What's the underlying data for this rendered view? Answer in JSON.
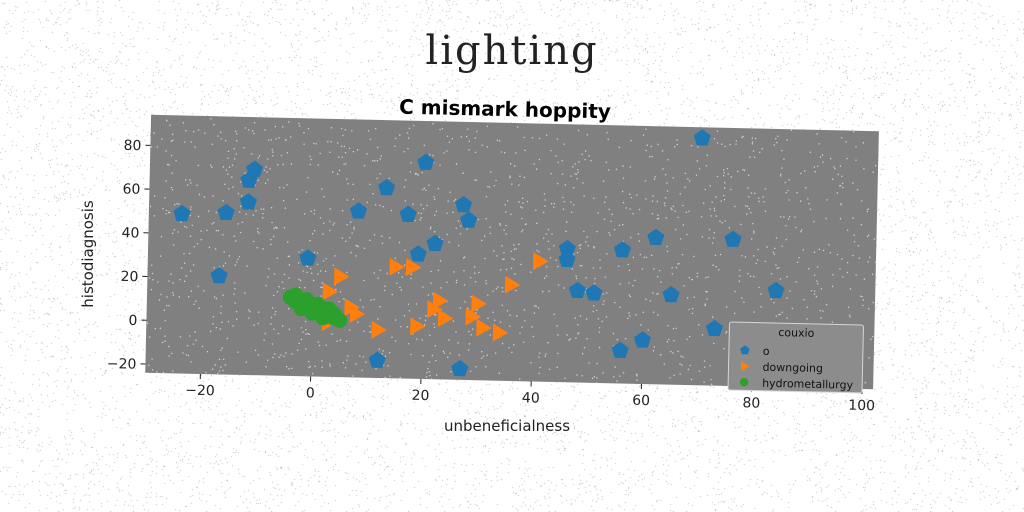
{
  "figure": {
    "suptitle": "lighting",
    "background": "#ffffff",
    "plot_background": "#808080"
  },
  "chart_data": {
    "type": "scatter",
    "title": "C mismark hoppity",
    "xlabel": "unbeneficialness",
    "ylabel": "histodiagnosis",
    "xlim": [
      -30,
      102
    ],
    "ylim": [
      -24,
      94
    ],
    "xticks": [
      -20,
      0,
      20,
      40,
      60,
      80,
      100
    ],
    "yticks": [
      -20,
      0,
      20,
      40,
      60,
      80
    ],
    "grid": false,
    "legend": {
      "title": "couxio",
      "placement": "lower-right"
    },
    "series": [
      {
        "name": "o",
        "marker": "pentagon",
        "color": "#1f77b4",
        "points": [
          [
            -24,
            49
          ],
          [
            -17,
            21
          ],
          [
            -16,
            50
          ],
          [
            -12,
            65
          ],
          [
            -11,
            70
          ],
          [
            -12,
            55
          ],
          [
            -1,
            30
          ],
          [
            8,
            52
          ],
          [
            13,
            63
          ],
          [
            17,
            51
          ],
          [
            20,
            75
          ],
          [
            19,
            33
          ],
          [
            22,
            38
          ],
          [
            27,
            56
          ],
          [
            28,
            49
          ],
          [
            12,
            -16
          ],
          [
            27,
            -19
          ],
          [
            46,
            37
          ],
          [
            46,
            32
          ],
          [
            48,
            18
          ],
          [
            51,
            17
          ],
          [
            56,
            37
          ],
          [
            56,
            -9
          ],
          [
            60,
            -4
          ],
          [
            62,
            43
          ],
          [
            65,
            17
          ],
          [
            70,
            89
          ],
          [
            73,
            2
          ],
          [
            76,
            43
          ],
          [
            84,
            20
          ],
          [
            95,
            -3
          ]
        ]
      },
      {
        "name": "downgoing",
        "marker": "triangle-right",
        "color": "#ff7f0e",
        "points": [
          [
            3,
            15
          ],
          [
            5,
            22
          ],
          [
            7,
            8
          ],
          [
            8,
            5
          ],
          [
            3,
            1
          ],
          [
            12,
            -2
          ],
          [
            15,
            27
          ],
          [
            18,
            27
          ],
          [
            19,
            0
          ],
          [
            23,
            12
          ],
          [
            24,
            4
          ],
          [
            29,
            5
          ],
          [
            30,
            11
          ],
          [
            31,
            0
          ],
          [
            34,
            -2
          ],
          [
            36,
            20
          ],
          [
            41,
            31
          ],
          [
            22,
            8
          ]
        ]
      },
      {
        "name": "hydrometallurgy",
        "marker": "circle",
        "color": "#2ca02c",
        "points": [
          [
            -4,
            12
          ],
          [
            -3,
            10
          ],
          [
            -2,
            9
          ],
          [
            -1,
            8
          ],
          [
            0,
            7
          ],
          [
            1,
            6
          ],
          [
            2,
            5
          ],
          [
            3,
            4
          ],
          [
            4,
            3
          ],
          [
            5,
            2
          ],
          [
            -3,
            13
          ],
          [
            -1,
            11
          ],
          [
            1,
            9
          ],
          [
            3,
            7
          ],
          [
            4,
            5
          ],
          [
            2,
            3
          ],
          [
            0,
            5
          ],
          [
            -2,
            7
          ]
        ]
      }
    ]
  }
}
